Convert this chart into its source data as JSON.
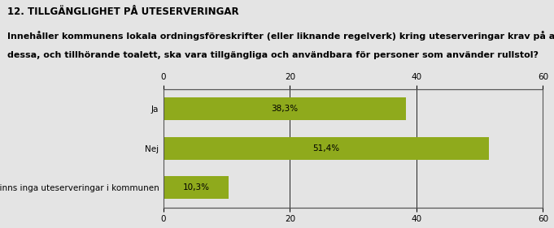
{
  "title": "12. TILLGÄNGLIGHET PÅ UTESERVERINGAR",
  "subtitle_line1": "Innehåller kommunens lokala ordningsföreskrifter (eller liknande regelverk) kring uteserveringar krav på att",
  "subtitle_line2": "dessa, och tillhörande toalett, ska vara tillgängliga och användbara för personer som använder rullstol?",
  "categories": [
    "Det finns inga uteserveringar i kommunen",
    "Nej",
    "Ja"
  ],
  "values": [
    10.3,
    51.4,
    38.3
  ],
  "labels": [
    "10,3%",
    "51,4%",
    "38,3%"
  ],
  "bar_color": "#8faa1c",
  "xlim": [
    0,
    60
  ],
  "xticks": [
    0,
    20,
    40,
    60
  ],
  "background_color": "#e4e4e4",
  "plot_background": "#e4e4e4",
  "title_fontsize": 8.5,
  "subtitle_fontsize": 8,
  "bar_label_fontsize": 7.5,
  "tick_label_fontsize": 7.5
}
